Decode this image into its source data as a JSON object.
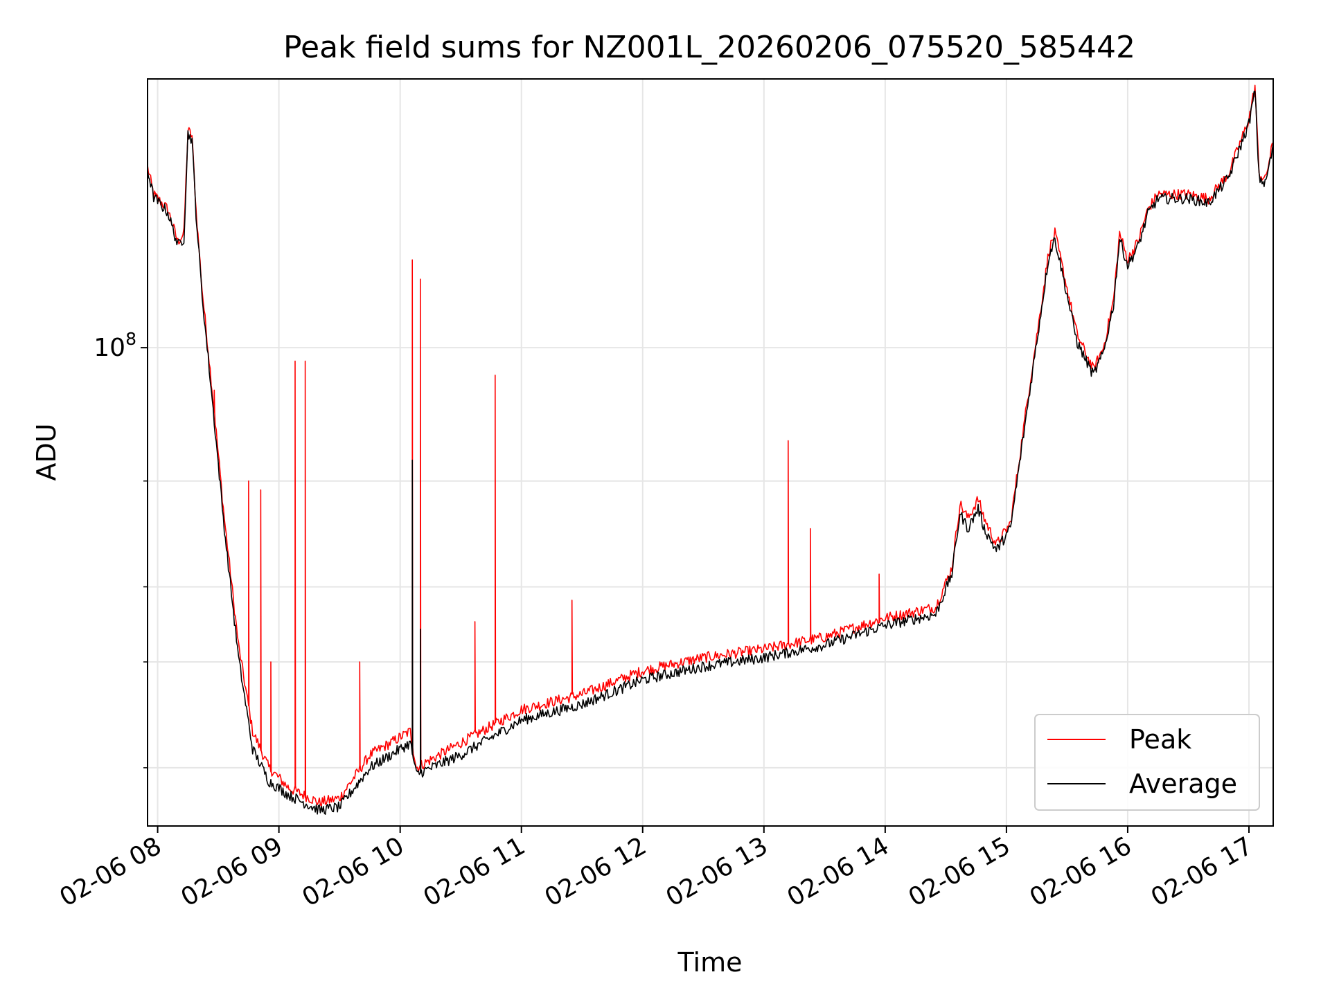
{
  "chart_data": {
    "type": "line",
    "title": "Peak field sums for NZ001L_20260206_075520_585442",
    "xlabel": "Time",
    "ylabel": "ADU",
    "xscale": "time",
    "yscale": "log",
    "xlim": [
      "2026-02-06 07:55",
      "2026-02-06 17:12"
    ],
    "ylim": [
      16000000,
      280000000
    ],
    "x_ticks": [
      "02-06 08",
      "02-06 09",
      "02-06 10",
      "02-06 11",
      "02-06 12",
      "02-06 13",
      "02-06 14",
      "02-06 15",
      "02-06 16",
      "02-06 17"
    ],
    "y_major_ticks": [
      {
        "value": 100000000,
        "base": "10",
        "exp": "8"
      }
    ],
    "y_minor_ticks": [
      20000000,
      30000000,
      40000000,
      60000000
    ],
    "grid": true,
    "legend": "lower-right",
    "series": [
      {
        "name": "Peak",
        "color": "#ff0000",
        "points": [
          [
            "2026-02-06 07:55",
            200000000
          ],
          [
            "2026-02-06 07:58",
            180000000
          ],
          [
            "2026-02-06 08:05",
            170000000
          ],
          [
            "2026-02-06 08:10",
            150000000
          ],
          [
            "2026-02-06 08:13",
            155000000
          ],
          [
            "2026-02-06 08:15",
            230000000
          ],
          [
            "2026-02-06 08:17",
            225000000
          ],
          [
            "2026-02-06 08:19",
            170000000
          ],
          [
            "2026-02-06 08:22",
            125000000
          ],
          [
            "2026-02-06 08:27",
            85000000
          ],
          [
            "2026-02-06 08:33",
            52000000
          ],
          [
            "2026-02-06 08:40",
            32000000
          ],
          [
            "2026-02-06 08:47",
            23000000
          ],
          [
            "2026-02-06 08:55",
            20000000
          ],
          [
            "2026-02-06 09:05",
            18500000
          ],
          [
            "2026-02-06 09:20",
            17500000
          ],
          [
            "2026-02-06 09:30",
            17800000
          ],
          [
            "2026-02-06 09:45",
            21000000
          ],
          [
            "2026-02-06 10:05",
            23000000
          ],
          [
            "2026-02-06 10:08",
            20000000
          ],
          [
            "2026-02-06 10:30",
            22000000
          ],
          [
            "2026-02-06 11:00",
            25000000
          ],
          [
            "2026-02-06 11:30",
            26500000
          ],
          [
            "2026-02-06 12:00",
            29000000
          ],
          [
            "2026-02-06 12:30",
            30500000
          ],
          [
            "2026-02-06 13:00",
            31500000
          ],
          [
            "2026-02-06 13:30",
            33000000
          ],
          [
            "2026-02-06 14:00",
            35500000
          ],
          [
            "2026-02-06 14:25",
            37000000
          ],
          [
            "2026-02-06 14:33",
            43000000
          ],
          [
            "2026-02-06 14:37",
            55000000
          ],
          [
            "2026-02-06 14:41",
            52000000
          ],
          [
            "2026-02-06 14:46",
            56000000
          ],
          [
            "2026-02-06 14:49",
            52000000
          ],
          [
            "2026-02-06 14:55",
            47000000
          ],
          [
            "2026-02-06 15:02",
            51000000
          ],
          [
            "2026-02-06 15:10",
            80000000
          ],
          [
            "2026-02-06 15:16",
            110000000
          ],
          [
            "2026-02-06 15:21",
            145000000
          ],
          [
            "2026-02-06 15:24",
            155000000
          ],
          [
            "2026-02-06 15:29",
            130000000
          ],
          [
            "2026-02-06 15:35",
            105000000
          ],
          [
            "2026-02-06 15:43",
            92000000
          ],
          [
            "2026-02-06 15:48",
            100000000
          ],
          [
            "2026-02-06 15:53",
            120000000
          ],
          [
            "2026-02-06 15:56",
            155000000
          ],
          [
            "2026-02-06 16:00",
            140000000
          ],
          [
            "2026-02-06 16:05",
            150000000
          ],
          [
            "2026-02-06 16:10",
            170000000
          ],
          [
            "2026-02-06 16:15",
            180000000
          ],
          [
            "2026-02-06 16:30",
            180000000
          ],
          [
            "2026-02-06 16:40",
            177000000
          ],
          [
            "2026-02-06 16:50",
            195000000
          ],
          [
            "2026-02-06 17:00",
            240000000
          ],
          [
            "2026-02-06 17:03",
            272000000
          ],
          [
            "2026-02-06 17:05",
            195000000
          ],
          [
            "2026-02-06 17:08",
            190000000
          ],
          [
            "2026-02-06 17:12",
            220000000
          ]
        ],
        "spikes": [
          [
            "2026-02-06 08:28",
            85000000
          ],
          [
            "2026-02-06 08:45",
            60000000
          ],
          [
            "2026-02-06 08:51",
            58000000
          ],
          [
            "2026-02-06 08:56",
            30000000
          ],
          [
            "2026-02-06 09:08",
            95000000
          ],
          [
            "2026-02-06 09:13",
            95000000
          ],
          [
            "2026-02-06 09:40",
            30000000
          ],
          [
            "2026-02-06 10:06",
            140000000
          ],
          [
            "2026-02-06 10:10",
            130000000
          ],
          [
            "2026-02-06 10:37",
            35000000
          ],
          [
            "2026-02-06 10:47",
            90000000
          ],
          [
            "2026-02-06 11:25",
            38000000
          ],
          [
            "2026-02-06 13:12",
            70000000
          ],
          [
            "2026-02-06 13:23",
            50000000
          ],
          [
            "2026-02-06 13:57",
            42000000
          ]
        ]
      },
      {
        "name": "Average",
        "color": "#000000",
        "points": [
          [
            "2026-02-06 07:55",
            198000000
          ],
          [
            "2026-02-06 07:58",
            178000000
          ],
          [
            "2026-02-06 08:05",
            168000000
          ],
          [
            "2026-02-06 08:10",
            148000000
          ],
          [
            "2026-02-06 08:13",
            152000000
          ],
          [
            "2026-02-06 08:15",
            227000000
          ],
          [
            "2026-02-06 08:17",
            222000000
          ],
          [
            "2026-02-06 08:19",
            167000000
          ],
          [
            "2026-02-06 08:22",
            122000000
          ],
          [
            "2026-02-06 08:27",
            82000000
          ],
          [
            "2026-02-06 08:33",
            50000000
          ],
          [
            "2026-02-06 08:40",
            30500000
          ],
          [
            "2026-02-06 08:47",
            21500000
          ],
          [
            "2026-02-06 08:55",
            19000000
          ],
          [
            "2026-02-06 09:05",
            18000000
          ],
          [
            "2026-02-06 09:20",
            17000000
          ],
          [
            "2026-02-06 09:30",
            17200000
          ],
          [
            "2026-02-06 09:45",
            20000000
          ],
          [
            "2026-02-06 10:05",
            22000000
          ],
          [
            "2026-02-06 10:08",
            19500000
          ],
          [
            "2026-02-06 10:30",
            21000000
          ],
          [
            "2026-02-06 11:00",
            24000000
          ],
          [
            "2026-02-06 11:30",
            25500000
          ],
          [
            "2026-02-06 12:00",
            28000000
          ],
          [
            "2026-02-06 12:30",
            29500000
          ],
          [
            "2026-02-06 13:00",
            30500000
          ],
          [
            "2026-02-06 13:30",
            32000000
          ],
          [
            "2026-02-06 14:00",
            34500000
          ],
          [
            "2026-02-06 14:25",
            36000000
          ],
          [
            "2026-02-06 14:33",
            42000000
          ],
          [
            "2026-02-06 14:37",
            53000000
          ],
          [
            "2026-02-06 14:41",
            50000000
          ],
          [
            "2026-02-06 14:46",
            54000000
          ],
          [
            "2026-02-06 14:49",
            50000000
          ],
          [
            "2026-02-06 14:55",
            46000000
          ],
          [
            "2026-02-06 15:02",
            50000000
          ],
          [
            "2026-02-06 15:10",
            78000000
          ],
          [
            "2026-02-06 15:16",
            108000000
          ],
          [
            "2026-02-06 15:21",
            142000000
          ],
          [
            "2026-02-06 15:24",
            152000000
          ],
          [
            "2026-02-06 15:29",
            127000000
          ],
          [
            "2026-02-06 15:35",
            102000000
          ],
          [
            "2026-02-06 15:43",
            90000000
          ],
          [
            "2026-02-06 15:48",
            98000000
          ],
          [
            "2026-02-06 15:53",
            118000000
          ],
          [
            "2026-02-06 15:56",
            152000000
          ],
          [
            "2026-02-06 16:00",
            137000000
          ],
          [
            "2026-02-06 16:05",
            147000000
          ],
          [
            "2026-02-06 16:10",
            167000000
          ],
          [
            "2026-02-06 16:15",
            177000000
          ],
          [
            "2026-02-06 16:30",
            177000000
          ],
          [
            "2026-02-06 16:40",
            174000000
          ],
          [
            "2026-02-06 16:50",
            192000000
          ],
          [
            "2026-02-06 17:00",
            236000000
          ],
          [
            "2026-02-06 17:03",
            268000000
          ],
          [
            "2026-02-06 17:05",
            192000000
          ],
          [
            "2026-02-06 17:08",
            187000000
          ],
          [
            "2026-02-06 17:12",
            216000000
          ]
        ],
        "spikes": [
          [
            "2026-02-06 10:06",
            65000000
          ],
          [
            "2026-02-06 10:10",
            34000000
          ]
        ]
      }
    ]
  }
}
